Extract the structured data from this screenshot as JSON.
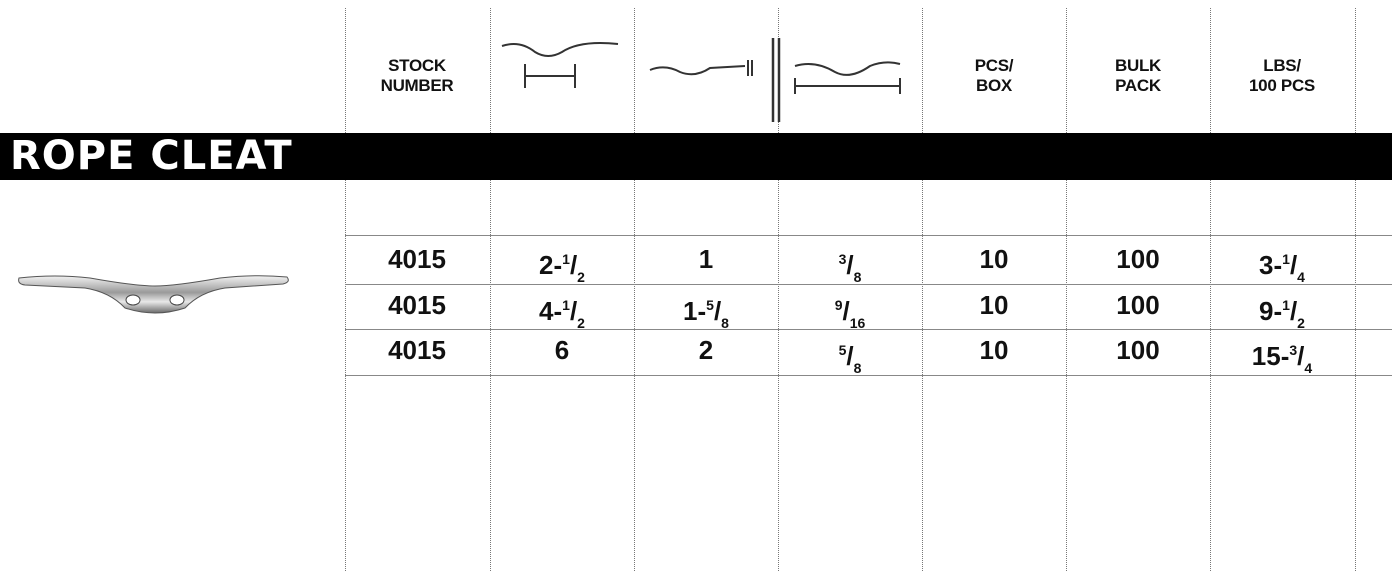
{
  "headers": {
    "stock_number": [
      "STOCK",
      "NUMBER"
    ],
    "pcs_box": [
      "PCS/",
      "BOX"
    ],
    "bulk_pack": [
      "BULK",
      "PACK"
    ],
    "lbs_100": [
      "LBS/",
      "100 PCS"
    ]
  },
  "section_title": "ROPE CLEAT",
  "rows": [
    [
      "4015",
      "2-1/2",
      "1",
      "3/8",
      "10",
      "100",
      "3-1/4"
    ],
    [
      "4015",
      "4-1/2",
      "1-5/8",
      "9/16",
      "10",
      "100",
      "9-1/2"
    ],
    [
      "4015",
      "6",
      "2",
      "5/8",
      "10",
      "100",
      "15-3/4"
    ]
  ]
}
